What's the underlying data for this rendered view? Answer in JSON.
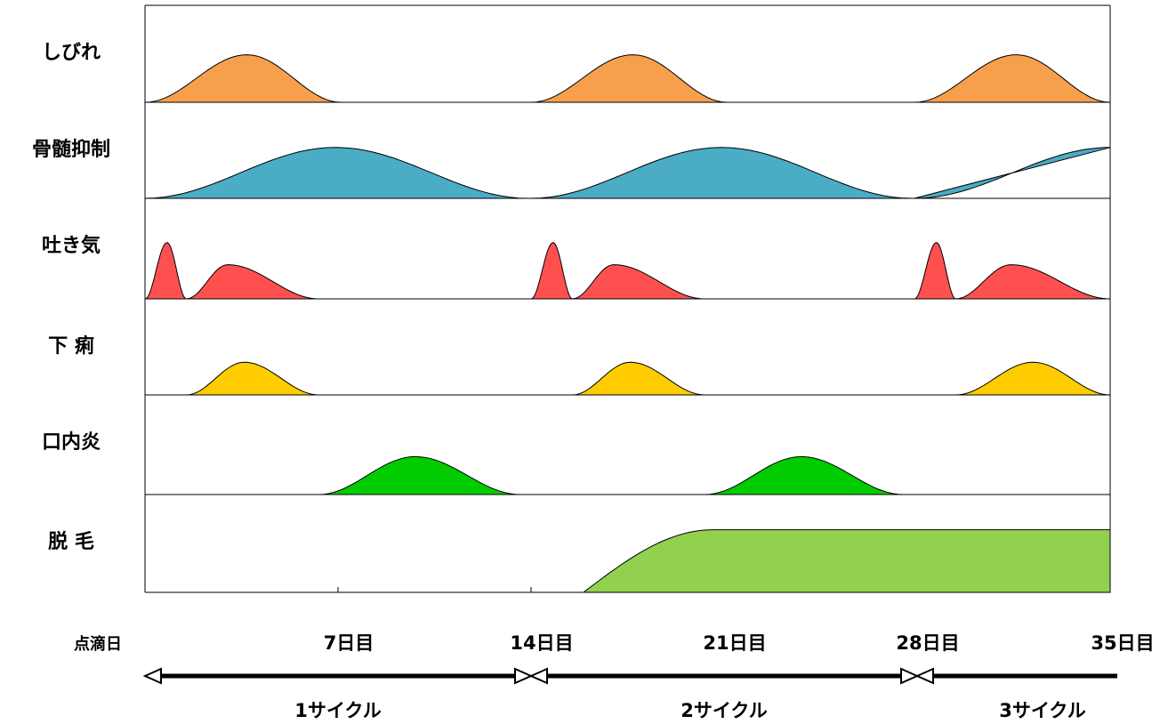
{
  "chart_data": {
    "type": "area",
    "x_unit": "day",
    "xlim": [
      0,
      35
    ],
    "rows": [
      {
        "label": "しびれ",
        "color": "#f6a04d",
        "humps": [
          {
            "start": 0,
            "end": 7.1,
            "peak": 3.7,
            "height": 0.49
          },
          {
            "start": 14,
            "end": 21.1,
            "peak": 17.7,
            "height": 0.49
          },
          {
            "start": 27.9,
            "end": 35,
            "peak": 31.6,
            "height": 0.49
          }
        ]
      },
      {
        "label": "骨髄抑制",
        "color": "#4bacc6",
        "humps": [
          {
            "start": 0,
            "end": 13.9,
            "peak": 6.9,
            "height": 0.53
          },
          {
            "start": 14,
            "end": 27.8,
            "peak": 20.9,
            "height": 0.53
          },
          {
            "start": 27.9,
            "end": 35,
            "peak": 35.0,
            "height": 0.53
          }
        ]
      },
      {
        "label": "吐き気",
        "color": "#ff5050",
        "humps": [
          {
            "start": 0,
            "end": 1.5,
            "peak": 0.8,
            "height": 0.56
          },
          {
            "start": 1.5,
            "end": 6.3,
            "peak": 3.0,
            "height": 0.34
          },
          {
            "start": 14,
            "end": 15.5,
            "peak": 14.8,
            "height": 0.56
          },
          {
            "start": 15.5,
            "end": 20.3,
            "peak": 17.0,
            "height": 0.34
          },
          {
            "start": 27.9,
            "end": 29.4,
            "peak": 28.7,
            "height": 0.56
          },
          {
            "start": 29.4,
            "end": 35,
            "peak": 31.4,
            "height": 0.34
          }
        ]
      },
      {
        "label": "下 痢",
        "color": "#ffcc00",
        "humps": [
          {
            "start": 1.5,
            "end": 6.3,
            "peak": 3.6,
            "height": 0.34
          },
          {
            "start": 15.5,
            "end": 20.3,
            "peak": 17.6,
            "height": 0.34
          },
          {
            "start": 29.4,
            "end": 35,
            "peak": 32.2,
            "height": 0.34
          }
        ]
      },
      {
        "label": "口内炎",
        "color": "#00cc00",
        "humps": [
          {
            "start": 6.3,
            "end": 13.6,
            "peak": 9.8,
            "height": 0.38
          },
          {
            "start": 20.3,
            "end": 27.5,
            "peak": 23.8,
            "height": 0.38
          }
        ]
      },
      {
        "label": "脱 毛",
        "color": "#92d050",
        "plateau": {
          "start": 15.9,
          "rise_end": 20.6,
          "end": 35,
          "height": 0.64
        }
      }
    ],
    "x_tick_labels": [
      {
        "label": "点滴日",
        "x": 0
      },
      {
        "label": "7日目",
        "x": 7
      },
      {
        "label": "14日目",
        "x": 14
      },
      {
        "label": "21日目",
        "x": 21
      },
      {
        "label": "28日目",
        "x": 28
      },
      {
        "label": "35日目",
        "x": 35
      }
    ],
    "cycles": [
      {
        "label": "1サイクル",
        "start": 0,
        "end": 14
      },
      {
        "label": "2サイクル",
        "start": 14,
        "end": 28
      },
      {
        "label": "3サイクル",
        "start": 28,
        "end": 35
      }
    ]
  }
}
